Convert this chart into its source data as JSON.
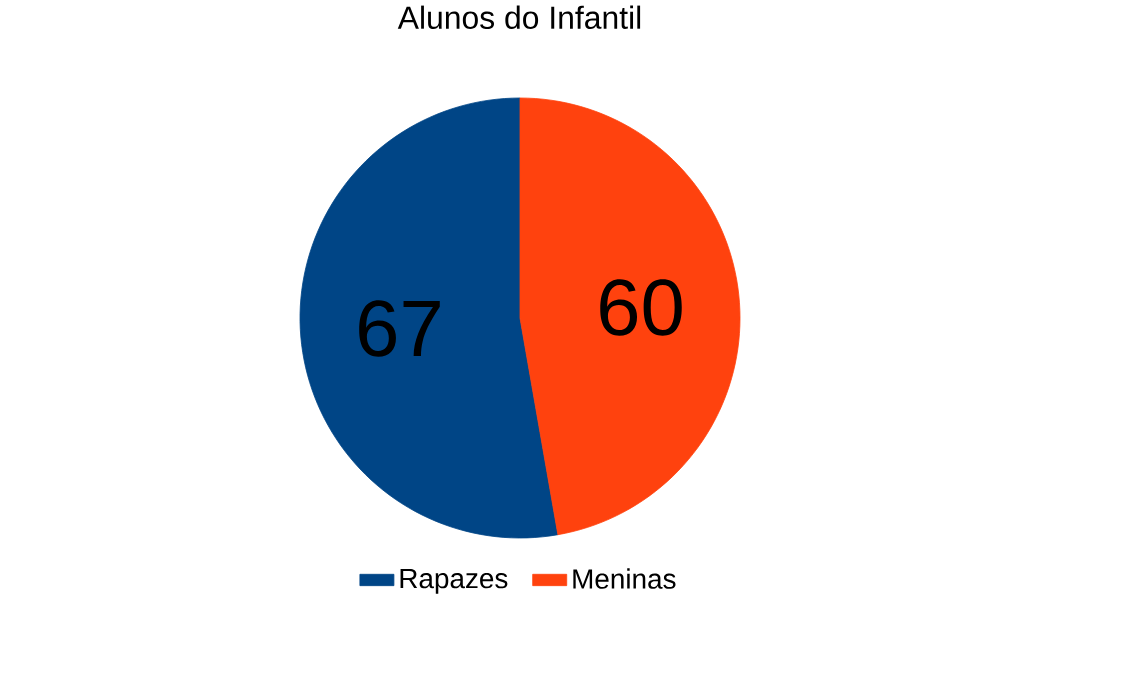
{
  "chart_data": {
    "type": "pie",
    "title": "Alunos do Infantil",
    "categories": [
      "Rapazes",
      "Meninas"
    ],
    "values": [
      67,
      60
    ],
    "colors": [
      "#004586",
      "#ff420e"
    ],
    "data_labels": true,
    "legend": "bottom"
  }
}
